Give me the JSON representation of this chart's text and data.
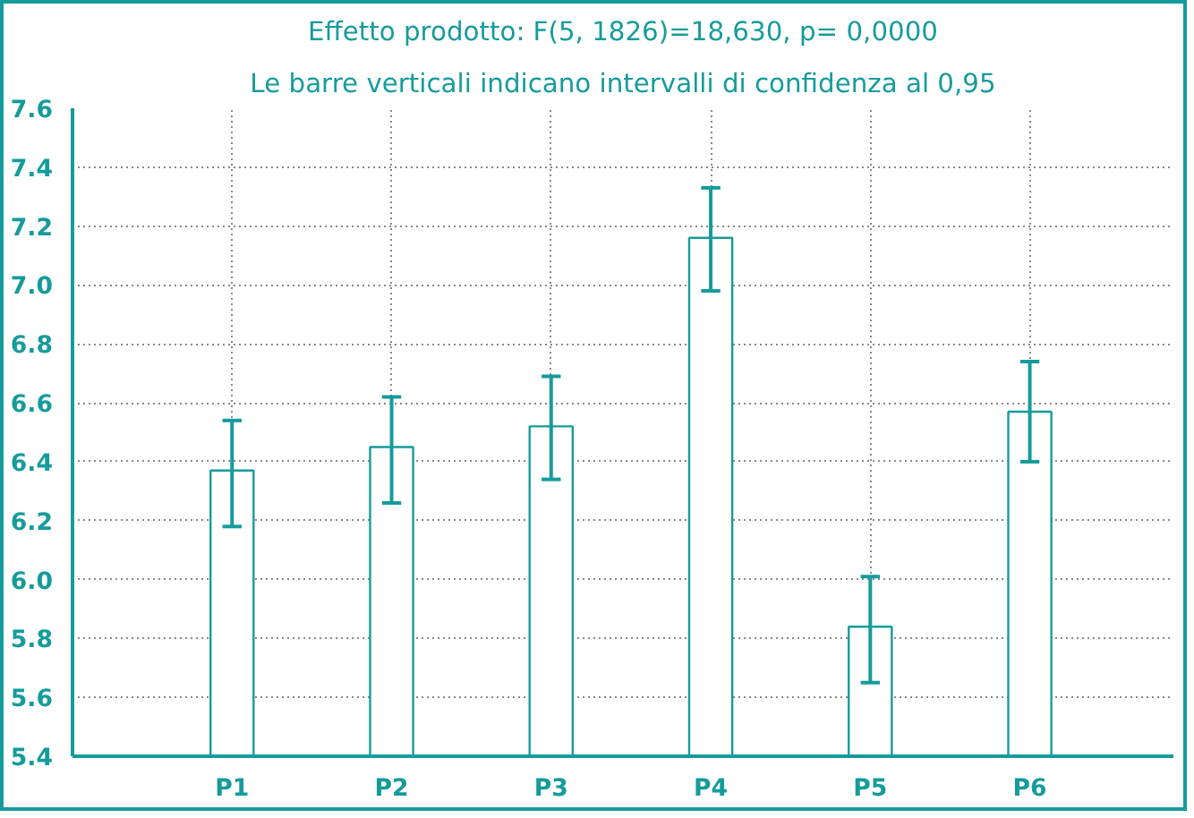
{
  "chart_data": {
    "type": "bar",
    "title": "Effetto prodotto: F(5, 1826)=18,630, p= 0,0000",
    "subtitle": "Le barre verticali indicano intervalli di confidenza al 0,95",
    "categories": [
      "P1",
      "P2",
      "P3",
      "P4",
      "P5",
      "P6"
    ],
    "values": [
      6.37,
      6.45,
      6.52,
      7.16,
      5.84,
      6.57
    ],
    "errors": [
      [
        6.18,
        6.54
      ],
      [
        6.26,
        6.62
      ],
      [
        6.34,
        6.69
      ],
      [
        6.98,
        7.33
      ],
      [
        5.65,
        6.01
      ],
      [
        6.4,
        6.74
      ]
    ],
    "color": "#ffffff",
    "ylim": [
      5.4,
      7.6
    ],
    "yticks": [
      {
        "value": 5.4,
        "label": "5.4"
      },
      {
        "value": 5.6,
        "label": "5.6"
      },
      {
        "value": 5.8,
        "label": "5.8"
      },
      {
        "value": 6.0,
        "label": "6.0"
      },
      {
        "value": 6.2,
        "label": "6.2"
      },
      {
        "value": 6.4,
        "label": "6.4"
      },
      {
        "value": 6.6,
        "label": "6.6"
      },
      {
        "value": 6.8,
        "label": "6.8"
      },
      {
        "value": 7.0,
        "label": "7.0"
      },
      {
        "value": 7.2,
        "label": "7.2"
      },
      {
        "value": 7.4,
        "label": "7.4"
      },
      {
        "value": 7.6,
        "label": "7.6"
      }
    ],
    "grid": true
  }
}
